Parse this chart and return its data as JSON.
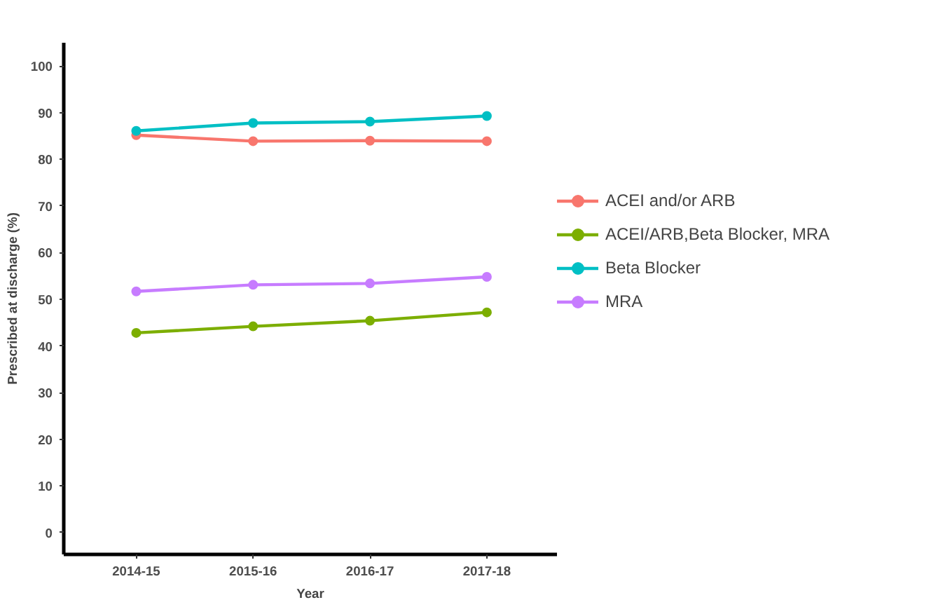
{
  "chart_data": {
    "type": "line",
    "xlabel": "Year",
    "ylabel": "Prescribed at discharge (%)",
    "categories": [
      "2014-15",
      "2015-16",
      "2016-17",
      "2017-18"
    ],
    "ylim": [
      -4.7,
      105
    ],
    "yticks": [
      0,
      10,
      20,
      30,
      40,
      50,
      60,
      70,
      80,
      90,
      100
    ],
    "grid": false,
    "legend": "right",
    "marker": "circle",
    "line_style": "solid",
    "series": [
      {
        "name": "ACEI and/or ARB",
        "color": "#f8766d",
        "values": [
          85.2,
          83.9,
          84.0,
          83.9
        ]
      },
      {
        "name": "ACEI/ARB,Beta Blocker, MRA",
        "color": "#7cae00",
        "values": [
          42.8,
          44.2,
          45.4,
          47.2
        ]
      },
      {
        "name": "Beta Blocker",
        "color": "#00bfc4",
        "values": [
          86.1,
          87.8,
          88.1,
          89.3
        ]
      },
      {
        "name": "MRA",
        "color": "#c77cff",
        "values": [
          51.7,
          53.1,
          53.4,
          54.8
        ]
      }
    ]
  }
}
